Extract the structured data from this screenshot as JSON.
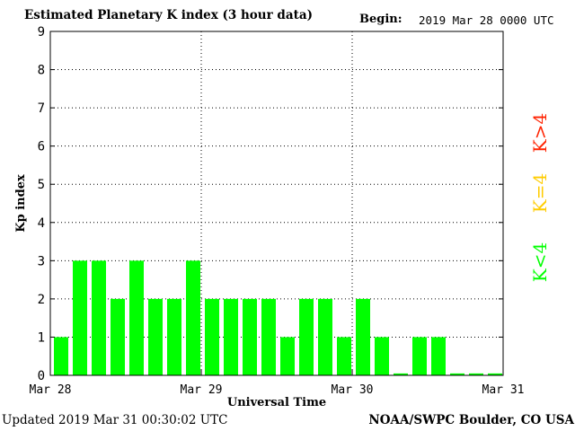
{
  "header": {
    "title": "Estimated Planetary K index (3 hour data)",
    "begin_label": "Begin:",
    "begin_value": "2019 Mar 28 0000 UTC"
  },
  "footer": {
    "updated": "Updated 2019 Mar 31 00:30:02 UTC",
    "credit": "NOAA/SWPC Boulder, CO USA"
  },
  "chart_data": {
    "type": "bar",
    "title": "Estimated Planetary K index (3 hour data)",
    "xlabel": "Universal Time",
    "ylabel": "Kp index",
    "ylim": [
      0,
      9
    ],
    "yticks": [
      "0",
      "1",
      "2",
      "3",
      "4",
      "5",
      "6",
      "7",
      "8",
      "9"
    ],
    "xticks": [
      "Mar 28",
      "Mar 29",
      "Mar 30",
      "Mar 31"
    ],
    "grid": "dotted",
    "bar_color": "#00ff00",
    "values": [
      1,
      3,
      3,
      2,
      3,
      2,
      2,
      3,
      2,
      2,
      2,
      2,
      1,
      2,
      2,
      1,
      2,
      1,
      0.05,
      1,
      1,
      0.05,
      0.05,
      0.05
    ],
    "legend": [
      {
        "label": "K>4",
        "color": "#ff2200"
      },
      {
        "label": "K=4",
        "color": "#ffcc00"
      },
      {
        "label": "K<4",
        "color": "#00ff00"
      }
    ]
  }
}
